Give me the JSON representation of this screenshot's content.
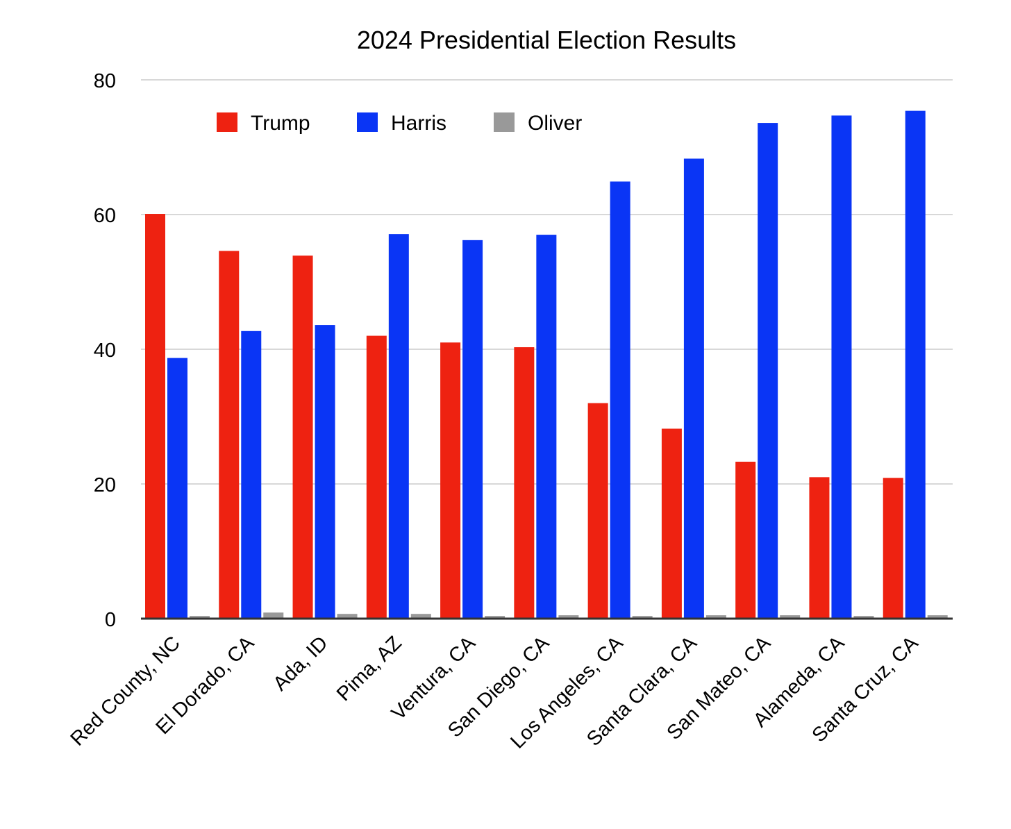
{
  "chart_data": {
    "type": "bar",
    "title": "2024 Presidential Election Results",
    "xlabel": "",
    "ylabel": "",
    "ylim": [
      0,
      80
    ],
    "yticks": [
      0,
      20,
      40,
      60,
      80
    ],
    "grid": true,
    "legend_position": "top-left",
    "categories": [
      "Red County, NC",
      "El Dorado, CA",
      "Ada, ID",
      "Pima, AZ",
      "Ventura, CA",
      "San Diego, CA",
      "Los Angeles, CA",
      "Santa Clara, CA",
      "San Mateo, CA",
      "Alameda, CA",
      "Santa Cruz, CA"
    ],
    "series": [
      {
        "name": "Trump",
        "color": "#ee2211",
        "values": [
          60.1,
          54.6,
          53.9,
          42.0,
          41.0,
          40.3,
          32.0,
          28.2,
          23.3,
          21.0,
          20.9
        ]
      },
      {
        "name": "Harris",
        "color": "#0a35f5",
        "values": [
          38.7,
          42.7,
          43.6,
          57.1,
          56.2,
          57.0,
          64.9,
          68.3,
          73.6,
          74.7,
          75.4
        ]
      },
      {
        "name": "Oliver",
        "color": "#999999",
        "values": [
          0.4,
          0.9,
          0.7,
          0.7,
          0.4,
          0.5,
          0.4,
          0.5,
          0.5,
          0.4,
          0.5
        ]
      }
    ]
  }
}
